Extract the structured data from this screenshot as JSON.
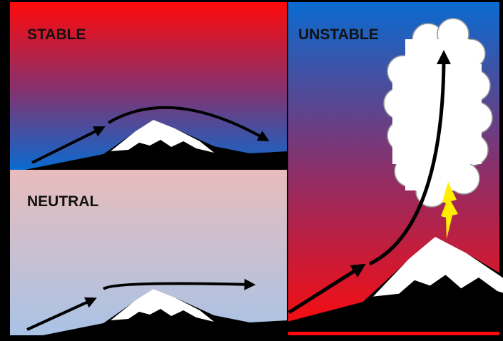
{
  "panels": [
    {
      "label": "STABLE"
    },
    {
      "label": "NEUTRAL"
    },
    {
      "label": "UNSTABLE"
    }
  ]
}
